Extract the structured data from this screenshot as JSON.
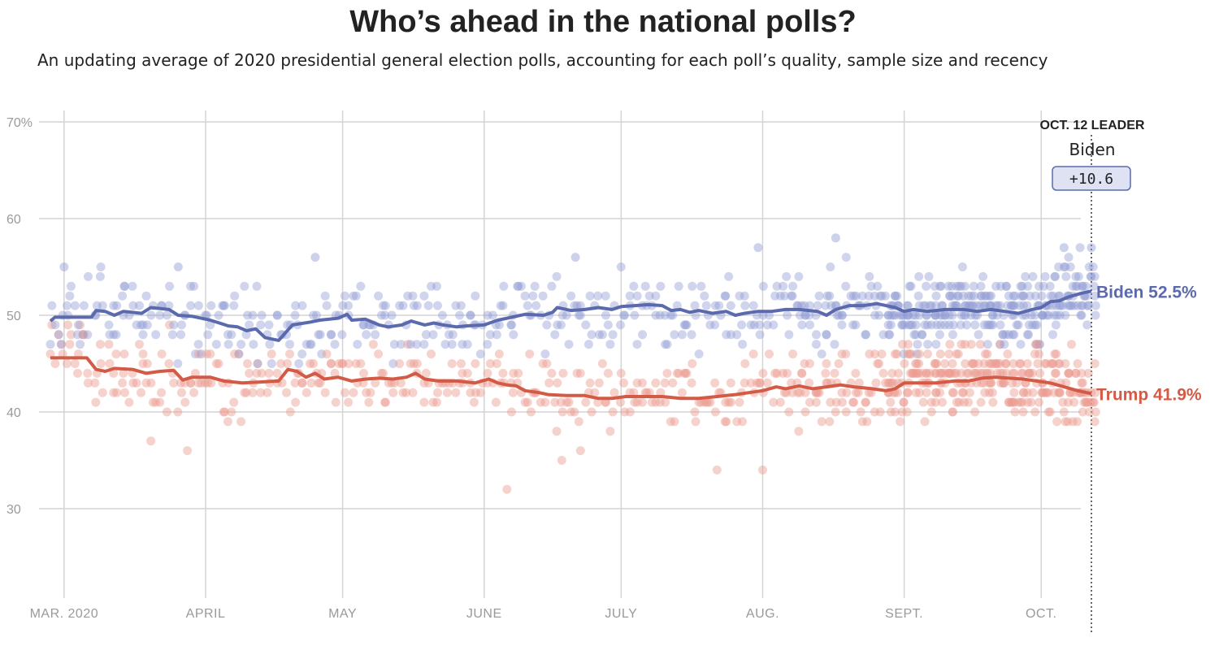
{
  "title": "Who’s ahead in the national polls?",
  "subtitle": "An updating average of 2020 presidential general election polls, accounting for each poll’s quality, sample size and recency",
  "chart_data": {
    "type": "line",
    "x_domain": [
      "2020-02-27",
      "2020-10-12"
    ],
    "ylim": [
      20,
      70
    ],
    "y_ticks": [
      {
        "value": 30,
        "label": "30"
      },
      {
        "value": 40,
        "label": "40"
      },
      {
        "value": 50,
        "label": "50"
      },
      {
        "value": 60,
        "label": "60"
      },
      {
        "value": 70,
        "label": "70%"
      }
    ],
    "x_ticks": [
      {
        "date": "2020-03-01",
        "label": "MAR. 2020"
      },
      {
        "date": "2020-04-01",
        "label": "APRIL"
      },
      {
        "date": "2020-05-01",
        "label": "MAY"
      },
      {
        "date": "2020-06-01",
        "label": "JUNE"
      },
      {
        "date": "2020-07-01",
        "label": "JULY"
      },
      {
        "date": "2020-08-01",
        "label": "AUG."
      },
      {
        "date": "2020-09-01",
        "label": "SEPT."
      },
      {
        "date": "2020-10-01",
        "label": "OCT."
      }
    ],
    "grid": true,
    "series": [
      {
        "name": "Biden",
        "color": "#5b6aad",
        "end_label": "Biden 52.5%",
        "points": [
          [
            "2020-02-27",
            49.4
          ],
          [
            "2020-02-28",
            49.8
          ],
          [
            "2020-03-05",
            49.8
          ],
          [
            "2020-03-07",
            49.8
          ],
          [
            "2020-03-08",
            50.5
          ],
          [
            "2020-03-10",
            50.4
          ],
          [
            "2020-03-12",
            50.0
          ],
          [
            "2020-03-14",
            50.4
          ],
          [
            "2020-03-18",
            50.2
          ],
          [
            "2020-03-20",
            50.8
          ],
          [
            "2020-03-24",
            50.6
          ],
          [
            "2020-03-26",
            50.0
          ],
          [
            "2020-03-29",
            49.9
          ],
          [
            "2020-04-02",
            49.5
          ],
          [
            "2020-04-04",
            49.2
          ],
          [
            "2020-04-06",
            48.9
          ],
          [
            "2020-04-08",
            48.8
          ],
          [
            "2020-04-10",
            48.4
          ],
          [
            "2020-04-12",
            48.6
          ],
          [
            "2020-04-14",
            47.7
          ],
          [
            "2020-04-16",
            47.5
          ],
          [
            "2020-04-17",
            47.4
          ],
          [
            "2020-04-20",
            49.0
          ],
          [
            "2020-04-24",
            49.3
          ],
          [
            "2020-04-26",
            49.5
          ],
          [
            "2020-04-30",
            49.7
          ],
          [
            "2020-05-02",
            50.1
          ],
          [
            "2020-05-03",
            49.5
          ],
          [
            "2020-05-06",
            49.6
          ],
          [
            "2020-05-09",
            49.0
          ],
          [
            "2020-05-11",
            48.8
          ],
          [
            "2020-05-14",
            49.0
          ],
          [
            "2020-05-16",
            49.4
          ],
          [
            "2020-05-19",
            49.0
          ],
          [
            "2020-05-21",
            49.2
          ],
          [
            "2020-05-23",
            49.0
          ],
          [
            "2020-05-26",
            48.8
          ],
          [
            "2020-05-28",
            48.9
          ],
          [
            "2020-06-01",
            49.0
          ],
          [
            "2020-06-04",
            49.5
          ],
          [
            "2020-06-07",
            49.8
          ],
          [
            "2020-06-10",
            50.1
          ],
          [
            "2020-06-14",
            50.0
          ],
          [
            "2020-06-16",
            50.3
          ],
          [
            "2020-06-17",
            50.8
          ],
          [
            "2020-06-20",
            50.5
          ],
          [
            "2020-06-23",
            50.6
          ],
          [
            "2020-06-26",
            50.8
          ],
          [
            "2020-06-29",
            50.6
          ],
          [
            "2020-07-01",
            50.9
          ],
          [
            "2020-07-04",
            51.0
          ],
          [
            "2020-07-07",
            51.1
          ],
          [
            "2020-07-10",
            51.0
          ],
          [
            "2020-07-12",
            50.5
          ],
          [
            "2020-07-14",
            50.6
          ],
          [
            "2020-07-16",
            50.3
          ],
          [
            "2020-07-18",
            50.5
          ],
          [
            "2020-07-21",
            50.2
          ],
          [
            "2020-07-24",
            50.4
          ],
          [
            "2020-07-26",
            50.0
          ],
          [
            "2020-07-28",
            50.2
          ],
          [
            "2020-07-31",
            50.4
          ],
          [
            "2020-08-03",
            50.4
          ],
          [
            "2020-08-06",
            50.6
          ],
          [
            "2020-08-09",
            50.6
          ],
          [
            "2020-08-13",
            50.4
          ],
          [
            "2020-08-15",
            50.0
          ],
          [
            "2020-08-17",
            50.6
          ],
          [
            "2020-08-20",
            51.0
          ],
          [
            "2020-08-23",
            51.0
          ],
          [
            "2020-08-26",
            51.2
          ],
          [
            "2020-08-28",
            51.0
          ],
          [
            "2020-08-30",
            50.8
          ],
          [
            "2020-09-01",
            50.4
          ],
          [
            "2020-09-03",
            50.6
          ],
          [
            "2020-09-06",
            50.4
          ],
          [
            "2020-09-10",
            50.6
          ],
          [
            "2020-09-14",
            50.6
          ],
          [
            "2020-09-17",
            50.4
          ],
          [
            "2020-09-20",
            50.6
          ],
          [
            "2020-09-23",
            50.4
          ],
          [
            "2020-09-26",
            50.2
          ],
          [
            "2020-09-29",
            50.6
          ],
          [
            "2020-10-01",
            50.8
          ],
          [
            "2020-10-03",
            51.4
          ],
          [
            "2020-10-05",
            51.5
          ],
          [
            "2020-10-07",
            51.9
          ],
          [
            "2020-10-10",
            52.3
          ],
          [
            "2020-10-12",
            52.5
          ]
        ]
      },
      {
        "name": "Trump",
        "color": "#d35b46",
        "end_label": "Trump 41.9%",
        "points": [
          [
            "2020-02-27",
            45.6
          ],
          [
            "2020-03-01",
            45.6
          ],
          [
            "2020-03-06",
            45.6
          ],
          [
            "2020-03-08",
            44.4
          ],
          [
            "2020-03-10",
            44.2
          ],
          [
            "2020-03-12",
            44.5
          ],
          [
            "2020-03-16",
            44.4
          ],
          [
            "2020-03-19",
            44.0
          ],
          [
            "2020-03-22",
            44.2
          ],
          [
            "2020-03-25",
            44.3
          ],
          [
            "2020-03-27",
            43.3
          ],
          [
            "2020-03-29",
            43.6
          ],
          [
            "2020-04-02",
            43.6
          ],
          [
            "2020-04-05",
            43.2
          ],
          [
            "2020-04-09",
            43.0
          ],
          [
            "2020-04-13",
            43.1
          ],
          [
            "2020-04-17",
            43.2
          ],
          [
            "2020-04-19",
            44.4
          ],
          [
            "2020-04-21",
            44.2
          ],
          [
            "2020-04-23",
            43.6
          ],
          [
            "2020-04-25",
            44.0
          ],
          [
            "2020-04-27",
            43.4
          ],
          [
            "2020-04-30",
            43.6
          ],
          [
            "2020-05-03",
            43.2
          ],
          [
            "2020-05-06",
            43.4
          ],
          [
            "2020-05-09",
            43.5
          ],
          [
            "2020-05-12",
            43.4
          ],
          [
            "2020-05-15",
            43.6
          ],
          [
            "2020-05-17",
            44.0
          ],
          [
            "2020-05-19",
            43.4
          ],
          [
            "2020-05-22",
            43.2
          ],
          [
            "2020-05-26",
            43.2
          ],
          [
            "2020-05-30",
            43.0
          ],
          [
            "2020-06-02",
            43.4
          ],
          [
            "2020-06-04",
            43.0
          ],
          [
            "2020-06-06",
            42.8
          ],
          [
            "2020-06-08",
            42.7
          ],
          [
            "2020-06-10",
            42.2
          ],
          [
            "2020-06-13",
            42.0
          ],
          [
            "2020-06-15",
            41.8
          ],
          [
            "2020-06-19",
            41.7
          ],
          [
            "2020-06-23",
            41.7
          ],
          [
            "2020-06-26",
            41.4
          ],
          [
            "2020-06-29",
            41.4
          ],
          [
            "2020-07-02",
            41.6
          ],
          [
            "2020-07-06",
            41.6
          ],
          [
            "2020-07-10",
            41.6
          ],
          [
            "2020-07-14",
            41.4
          ],
          [
            "2020-07-18",
            41.4
          ],
          [
            "2020-07-22",
            41.6
          ],
          [
            "2020-07-26",
            41.8
          ],
          [
            "2020-07-29",
            42.0
          ],
          [
            "2020-08-01",
            42.2
          ],
          [
            "2020-08-04",
            42.6
          ],
          [
            "2020-08-06",
            42.4
          ],
          [
            "2020-08-09",
            42.7
          ],
          [
            "2020-08-12",
            42.4
          ],
          [
            "2020-08-15",
            42.6
          ],
          [
            "2020-08-18",
            42.8
          ],
          [
            "2020-08-21",
            42.6
          ],
          [
            "2020-08-25",
            42.4
          ],
          [
            "2020-08-28",
            42.2
          ],
          [
            "2020-08-30",
            42.4
          ],
          [
            "2020-09-01",
            43.0
          ],
          [
            "2020-09-04",
            43.0
          ],
          [
            "2020-09-08",
            43.0
          ],
          [
            "2020-09-12",
            43.2
          ],
          [
            "2020-09-15",
            43.2
          ],
          [
            "2020-09-18",
            43.5
          ],
          [
            "2020-09-21",
            43.6
          ],
          [
            "2020-09-24",
            43.5
          ],
          [
            "2020-09-27",
            43.4
          ],
          [
            "2020-09-30",
            43.2
          ],
          [
            "2020-10-03",
            43.0
          ],
          [
            "2020-10-06",
            42.6
          ],
          [
            "2020-10-09",
            42.2
          ],
          [
            "2020-10-12",
            41.9
          ]
        ]
      }
    ],
    "polls": {
      "biden_color": "#8f9bd4",
      "trump_color": "#ec9c90",
      "seed": 2020,
      "biden_spread": 2.3,
      "trump_spread": 2.3,
      "notable_biden": [
        [
          "2020-03-01",
          55
        ],
        [
          "2020-03-26",
          55
        ],
        [
          "2020-04-25",
          56
        ],
        [
          "2020-06-21",
          56
        ],
        [
          "2020-07-31",
          57
        ],
        [
          "2020-08-17",
          58
        ],
        [
          "2020-10-06",
          57
        ],
        [
          "2020-10-12",
          57
        ]
      ],
      "notable_trump": [
        [
          "2020-06-06",
          32
        ],
        [
          "2020-06-18",
          35
        ],
        [
          "2020-07-22",
          34
        ],
        [
          "2020-08-01",
          34
        ],
        [
          "2020-03-20",
          37
        ],
        [
          "2020-03-28",
          36
        ]
      ]
    },
    "leader_box": {
      "heading": "OCT. 12 LEADER",
      "name": "Biden",
      "margin": "+10.6",
      "box_fill": "#dfe2f3",
      "box_stroke": "#5b6aad"
    }
  }
}
